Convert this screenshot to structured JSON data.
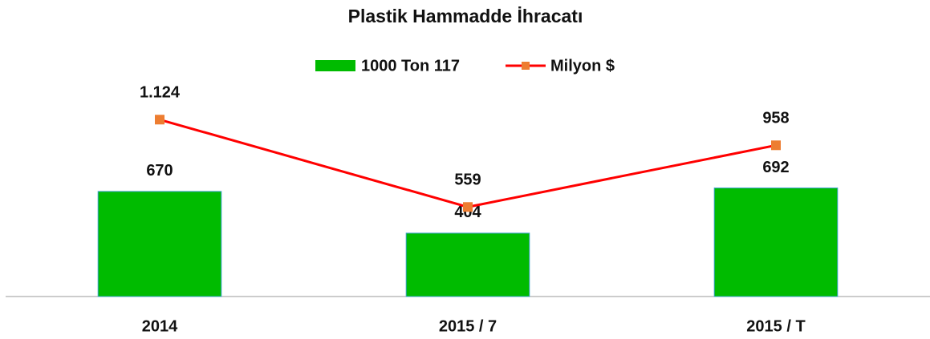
{
  "chart_data": {
    "type": "bar_line",
    "title": "Plastik Hammadde İhracatı",
    "categories": [
      "2014",
      "2015 / 7",
      "2015 / T"
    ],
    "series": [
      {
        "name": "1000 Ton 117",
        "type": "bar",
        "color": "#00bb00",
        "values": [
          670,
          404,
          692
        ]
      },
      {
        "name": "Milyon $",
        "type": "line",
        "axis": "y2",
        "color": "#ff0000",
        "marker_color": "#ed7d31",
        "values": [
          1124,
          559,
          958
        ],
        "value_labels": [
          "1.124",
          "559",
          "958"
        ]
      }
    ],
    "ylim": [
      0,
      1400
    ],
    "y2lim": [
      -20,
      1400
    ],
    "legend": "top"
  }
}
